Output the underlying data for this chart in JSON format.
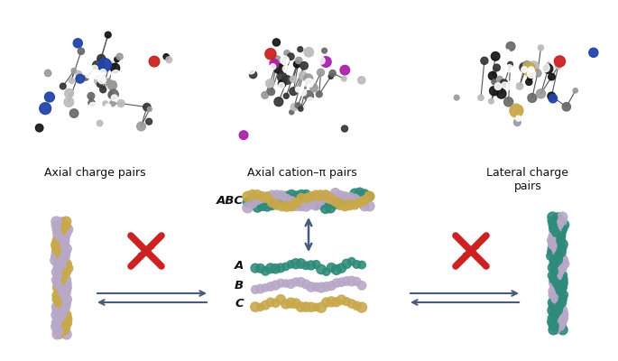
{
  "colors": {
    "teal": "#2E8B7A",
    "lavender": "#B8A8C8",
    "gold": "#C8A84B",
    "red_x": "#CC2222",
    "arrow": "#4A5A7A",
    "text": "#111111",
    "dark_gray": "#333333",
    "mid_gray": "#888888",
    "light_gray": "#AAAAAA",
    "black": "#111111",
    "white": "#FFFFFF",
    "blue": "#2244AA",
    "red_atom": "#CC2222",
    "purple": "#AA22AA",
    "gold_atom": "#C8A84B"
  },
  "figure_width": 6.85,
  "figure_height": 4.0,
  "background": "#FFFFFF",
  "label_left": "Axial charge pairs",
  "label_center": "Axial cation–π pairs",
  "label_right": "Lateral charge\npairs",
  "abc_label": "ABC",
  "strand_labels": [
    "A",
    "B",
    "C"
  ]
}
